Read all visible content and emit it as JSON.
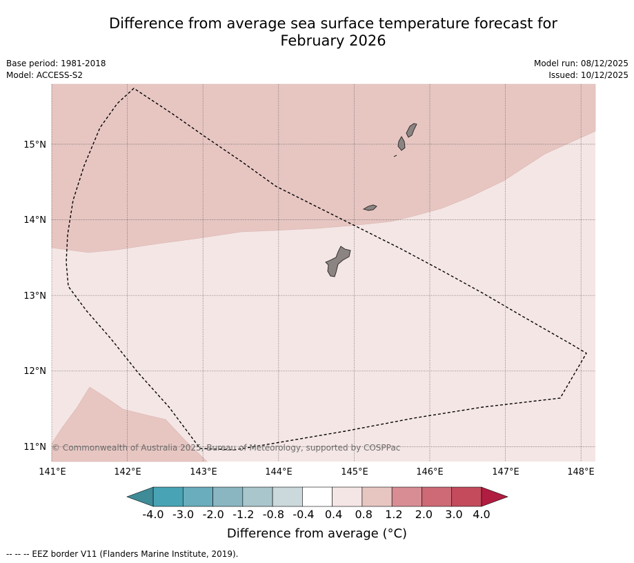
{
  "title": {
    "line1": "Difference from average sea surface temperature forecast for",
    "line2": "February 2026"
  },
  "meta": {
    "base_period": "Base period: 1981-2018",
    "model": "Model: ACCESS-S2",
    "model_run": "Model run: 08/12/2025",
    "issued": "Issued: 10/12/2025"
  },
  "map": {
    "lon_range": [
      141,
      148.2
    ],
    "lat_range": [
      10.8,
      15.8
    ],
    "lon_ticks": [
      "141°E",
      "142°E",
      "143°E",
      "144°E",
      "145°E",
      "146°E",
      "147°E",
      "148°E"
    ],
    "lat_ticks": [
      "15°N",
      "14°N",
      "13°N",
      "12°N",
      "11°N"
    ],
    "watermark": "© Commonwealth of Australia 2025, Bureau of Meteorology, supported by COSPPac",
    "regions": [
      {
        "name": "anomaly-0.4-to-0.8",
        "color": "#f4e6e5"
      },
      {
        "name": "anomaly-0.8-to-1.2",
        "color": "#e7c6c2"
      }
    ],
    "land_color": "#8c8482",
    "islands": [
      "Guam",
      "Rota",
      "Tinian",
      "Saipan"
    ],
    "eez_label": "EEZ border"
  },
  "colorbar": {
    "labels": [
      "-4.0",
      "-3.0",
      "-2.0",
      "-1.2",
      "-0.8",
      "-0.4",
      "0.4",
      "0.8",
      "1.2",
      "2.0",
      "3.0",
      "4.0"
    ],
    "colors": [
      "#48a4b5",
      "#6aadbc",
      "#8ab6c2",
      "#a8c6cb",
      "#cbd8dc",
      "#ffffff",
      "#f4e6e5",
      "#e7c6c2",
      "#d88d94",
      "#cd6a75",
      "#c34b5c"
    ],
    "under_color": "#3f8b98",
    "over_color": "#b01d40",
    "title": "Difference from average (°C)"
  },
  "footer": "--  --  -- EEZ border V11 (Flanders Marine Institute, 2019)."
}
